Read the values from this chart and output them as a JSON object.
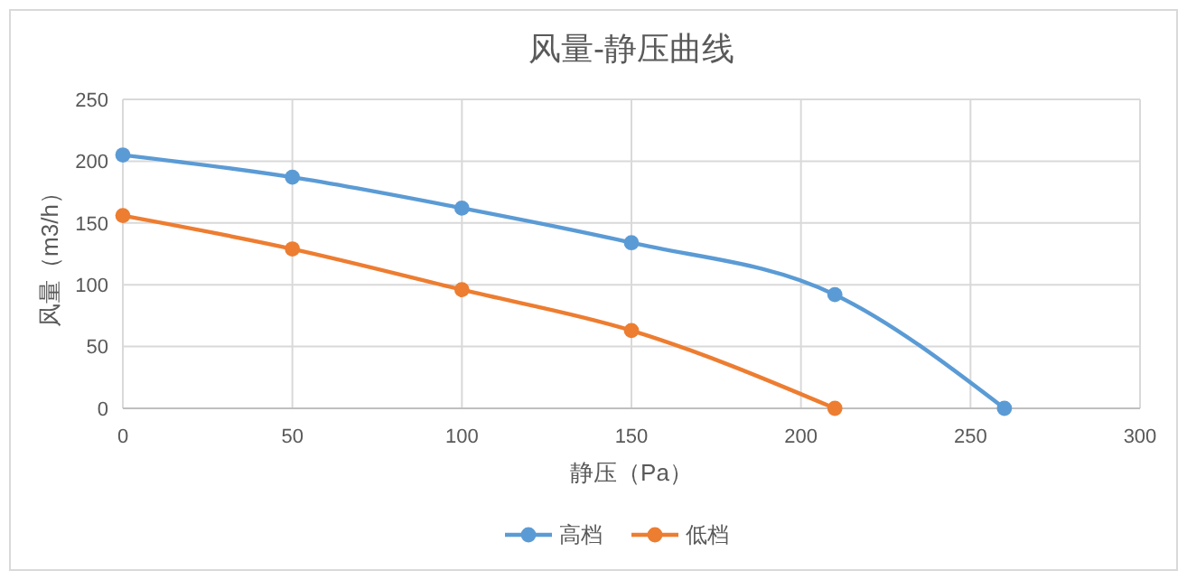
{
  "chart_data": {
    "type": "line",
    "title": "风量-静压曲线",
    "xlabel": "静压（Pa）",
    "ylabel": "风量（m3/h）",
    "xlim": [
      0,
      300
    ],
    "xticks": [
      0,
      50,
      100,
      150,
      200,
      250,
      300
    ],
    "ylim": [
      0,
      250
    ],
    "yticks": [
      0,
      50,
      100,
      150,
      200,
      250
    ],
    "grid": true,
    "legend": "bottom",
    "marker": "circle",
    "line_style": "solid",
    "series": [
      {
        "name": "高档",
        "color": "#5b9bd5",
        "x": [
          0,
          50,
          100,
          150,
          210,
          260
        ],
        "values": [
          205,
          187,
          162,
          134,
          92,
          0
        ]
      },
      {
        "name": "低档",
        "color": "#ed7d31",
        "x": [
          0,
          50,
          100,
          150,
          210
        ],
        "values": [
          156,
          129,
          96,
          63,
          0
        ]
      }
    ]
  }
}
